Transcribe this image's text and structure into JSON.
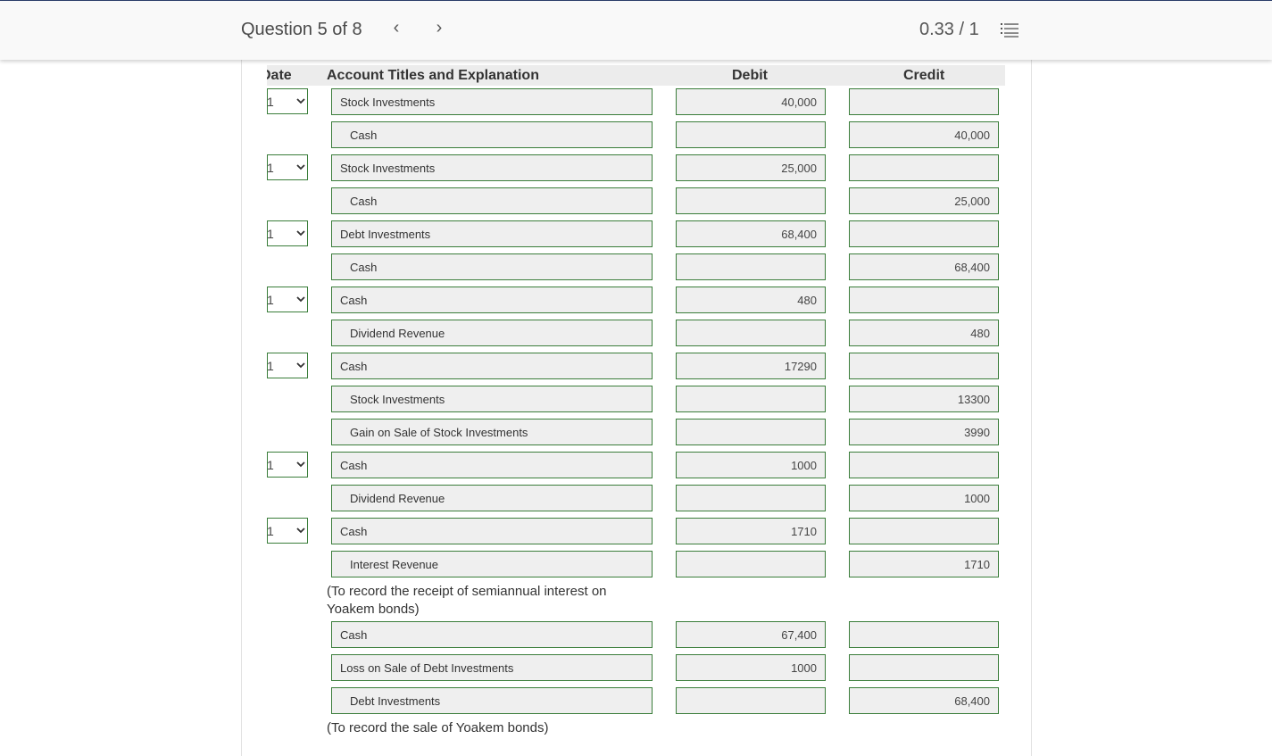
{
  "header": {
    "question_label": "Question 5 of 8",
    "prev_glyph": "‹",
    "next_glyph": "›",
    "score": "0.33 / 1"
  },
  "table": {
    "columns": {
      "date": "Date",
      "account": "Account Titles and Explanation",
      "debit": "Debit",
      "credit": "Credit"
    },
    "date_value": "1",
    "rows": [
      {
        "account": "Stock Investments",
        "debit": "40,000",
        "credit": ""
      },
      {
        "account": "Cash",
        "debit": "",
        "credit": "40,000"
      },
      {
        "account": "Stock Investments",
        "debit": "25,000",
        "credit": ""
      },
      {
        "account": "Cash",
        "debit": "",
        "credit": "25,000"
      },
      {
        "account": "Debt Investments",
        "debit": "68,400",
        "credit": ""
      },
      {
        "account": "Cash",
        "debit": "",
        "credit": "68,400"
      },
      {
        "account": "Cash",
        "debit": "480",
        "credit": ""
      },
      {
        "account": "Dividend Revenue",
        "debit": "",
        "credit": "480"
      },
      {
        "account": "Cash",
        "debit": "17290",
        "credit": ""
      },
      {
        "account": "Stock Investments",
        "debit": "",
        "credit": "13300"
      },
      {
        "account": "Gain on Sale of Stock Investments",
        "debit": "",
        "credit": "3990"
      },
      {
        "account": "Cash",
        "debit": "1000",
        "credit": ""
      },
      {
        "account": "Dividend Revenue",
        "debit": "",
        "credit": "1000"
      },
      {
        "account": "Cash",
        "debit": "1710",
        "credit": ""
      },
      {
        "account": "Interest Revenue",
        "debit": "",
        "credit": "1710"
      },
      {
        "account": "Cash",
        "debit": "67,400",
        "credit": ""
      },
      {
        "account": "Loss on Sale of Debt Investments",
        "debit": "1000",
        "credit": ""
      },
      {
        "account": "Debt Investments",
        "debit": "",
        "credit": "68,400"
      }
    ],
    "notes": {
      "interest_line1": "(To record the receipt of semiannual interest on",
      "interest_line2": "Yoakem bonds)",
      "sale": "(To record the sale of Yoakem bonds)"
    }
  },
  "colors": {
    "field_border": "#3a7d3a",
    "field_bg": "#efefef",
    "header_bg": "#f9f9f9",
    "column_header_bg": "#ececec"
  }
}
